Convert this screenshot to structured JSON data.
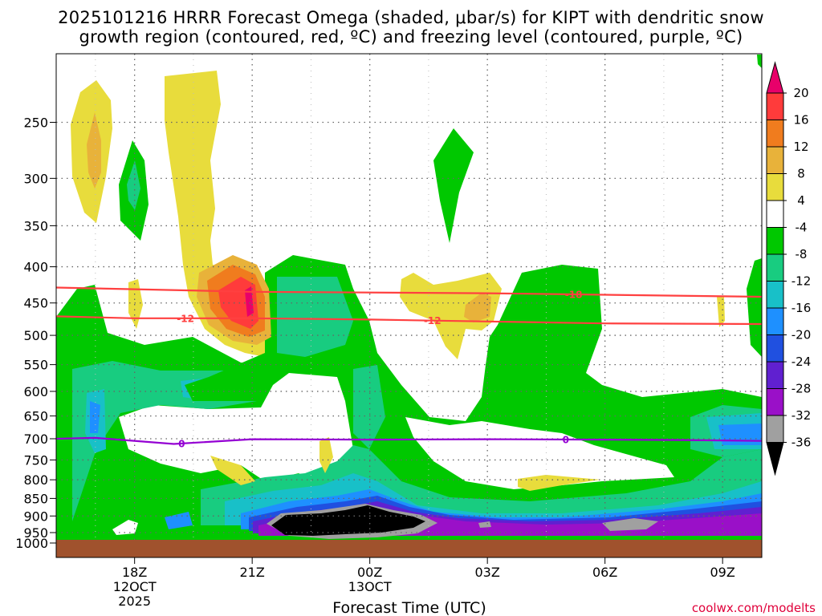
{
  "title": {
    "line1": "2025101216 HRRR Forecast Omega (shaded, μbar/s) for KIPT with dendritic snow",
    "line2": "growth region (contoured, red, ºC) and freezing level (contoured, purple, ºC)"
  },
  "credit": "coolwx.com/modelts",
  "chart_data": {
    "type": "heatmap",
    "xlabel": "Forecast Time (UTC)",
    "ylabel": "",
    "x_ticks": [
      {
        "label": "18Z",
        "sub1": "12OCT",
        "sub2": "2025",
        "hour": 18
      },
      {
        "label": "21Z",
        "sub1": "",
        "sub2": "",
        "hour": 21
      },
      {
        "label": "00Z",
        "sub1": "13OCT",
        "sub2": "",
        "hour": 24
      },
      {
        "label": "03Z",
        "sub1": "",
        "sub2": "",
        "hour": 27
      },
      {
        "label": "06Z",
        "sub1": "",
        "sub2": "",
        "hour": 30
      },
      {
        "label": "09Z",
        "sub1": "",
        "sub2": "",
        "hour": 33
      }
    ],
    "xlim_hours": [
      16,
      34
    ],
    "y_ticks": [
      250,
      300,
      350,
      400,
      450,
      500,
      550,
      600,
      650,
      700,
      750,
      800,
      850,
      900,
      950,
      1000
    ],
    "y_scale": "log-pressure",
    "ylim_hPa": [
      200,
      1030
    ],
    "grid": true,
    "colorbar": {
      "labels": [
        "20",
        "16",
        "12",
        "8",
        "4",
        "-4",
        "-8",
        "-12",
        "-16",
        "-20",
        "-24",
        "-28",
        "-32",
        "-36"
      ],
      "colors": [
        "#e8006a",
        "#ff3b3b",
        "#f07c1e",
        "#e8b23a",
        "#e8dc3c",
        "#ffffff",
        "#00c800",
        "#18cc80",
        "#18c0c8",
        "#1e90ff",
        "#2050e0",
        "#6020d0",
        "#9a10c8",
        "#a0a0a0",
        "#000000"
      ],
      "position": "right"
    },
    "contours": [
      {
        "name": "-18",
        "color": "#ff4040",
        "points": [
          [
            16,
            428
          ],
          [
            21,
            434
          ],
          [
            27,
            436
          ],
          [
            34,
            441
          ]
        ],
        "label": "-18",
        "label_hour": 29.2
      },
      {
        "name": "-12",
        "color": "#ff4040",
        "points": [
          [
            16,
            470
          ],
          [
            18,
            473
          ],
          [
            21,
            473
          ],
          [
            24,
            475
          ],
          [
            27,
            478
          ],
          [
            30,
            481
          ],
          [
            34,
            482
          ]
        ],
        "label": "-12",
        "label_points": [
          19.3,
          25.6
        ]
      },
      {
        "name": "0",
        "color": "#9400d3",
        "points": [
          [
            16,
            700
          ],
          [
            17,
            698
          ],
          [
            19,
            712
          ],
          [
            21,
            701
          ],
          [
            24,
            702
          ],
          [
            27,
            701
          ],
          [
            30,
            702
          ],
          [
            32,
            703
          ],
          [
            34,
            705
          ]
        ],
        "label": "0",
        "label_points": [
          19.2,
          29.0
        ]
      }
    ],
    "ground": {
      "color": "#a0522d",
      "label": ""
    }
  }
}
